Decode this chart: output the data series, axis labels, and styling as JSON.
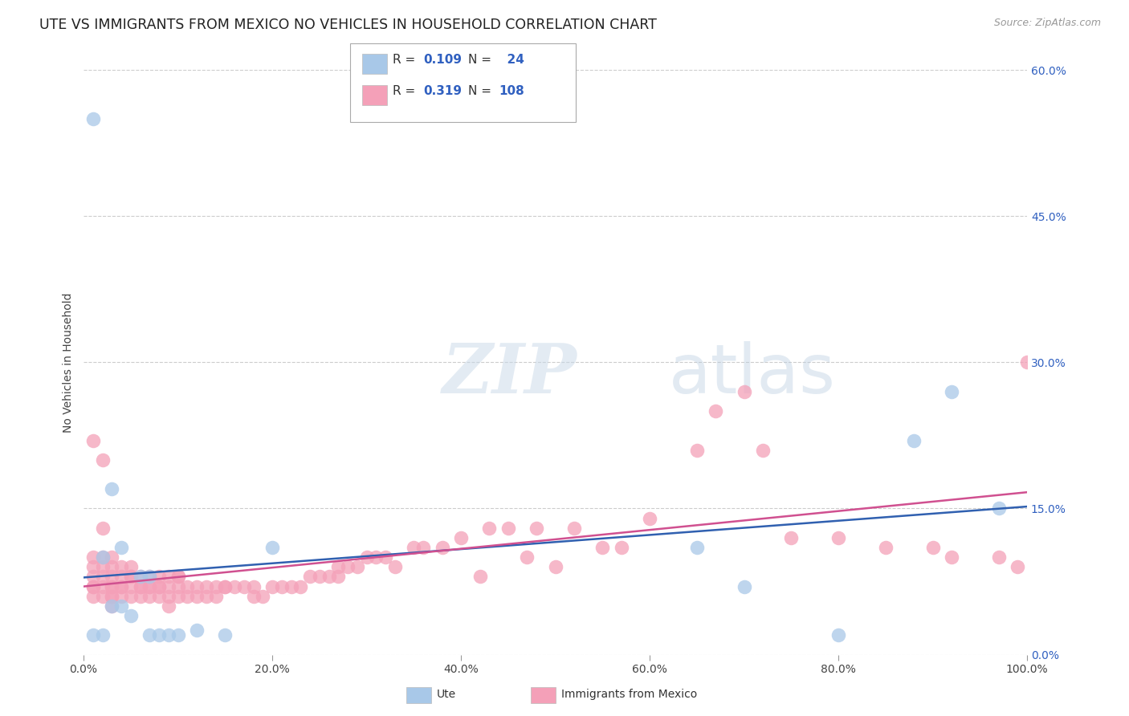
{
  "title": "UTE VS IMMIGRANTS FROM MEXICO NO VEHICLES IN HOUSEHOLD CORRELATION CHART",
  "source": "Source: ZipAtlas.com",
  "ylabel_label": "No Vehicles in Household",
  "legend_label1": "Ute",
  "legend_label2": "Immigrants from Mexico",
  "R1": 0.109,
  "N1": 24,
  "R2": 0.319,
  "N2": 108,
  "color_blue": "#a8c8e8",
  "color_blue_line": "#3060b0",
  "color_pink": "#f4a0b8",
  "color_pink_line": "#d05090",
  "color_right_tick": "#3060c0",
  "watermark_zip": "ZIP",
  "watermark_atlas": "atlas",
  "background_color": "#ffffff",
  "grid_color": "#cccccc",
  "title_fontsize": 12.5,
  "axis_label_fontsize": 10,
  "tick_fontsize": 10,
  "ute_x": [
    1,
    1,
    2,
    2,
    3,
    3,
    4,
    4,
    5,
    6,
    7,
    7,
    8,
    9,
    10,
    12,
    15,
    20,
    65,
    70,
    80,
    88,
    92,
    97
  ],
  "ute_y": [
    55,
    2,
    10,
    2,
    5,
    17,
    11,
    5,
    4,
    8,
    2,
    8,
    2,
    2,
    2,
    2.5,
    2,
    11,
    11,
    7,
    2,
    22,
    27,
    15
  ],
  "mex_x": [
    1,
    1,
    1,
    1,
    1,
    1,
    1,
    2,
    2,
    2,
    2,
    2,
    2,
    2,
    3,
    3,
    3,
    3,
    3,
    3,
    3,
    3,
    4,
    4,
    4,
    4,
    4,
    5,
    5,
    5,
    5,
    5,
    6,
    6,
    6,
    6,
    7,
    7,
    7,
    7,
    8,
    8,
    8,
    8,
    9,
    9,
    9,
    9,
    10,
    10,
    10,
    10,
    11,
    11,
    12,
    12,
    13,
    13,
    14,
    14,
    15,
    15,
    16,
    17,
    18,
    18,
    19,
    20,
    21,
    22,
    23,
    24,
    25,
    26,
    27,
    27,
    28,
    29,
    30,
    31,
    32,
    33,
    35,
    36,
    38,
    40,
    42,
    43,
    45,
    47,
    48,
    50,
    52,
    55,
    57,
    60,
    65,
    67,
    70,
    72,
    75,
    80,
    85,
    90,
    92,
    97,
    99,
    100
  ],
  "mex_y": [
    22,
    10,
    9,
    8,
    7,
    7,
    6,
    20,
    13,
    10,
    9,
    8,
    7,
    6,
    10,
    9,
    8,
    7,
    7,
    6,
    6,
    5,
    9,
    8,
    7,
    7,
    6,
    9,
    8,
    8,
    7,
    6,
    8,
    7,
    7,
    6,
    8,
    7,
    7,
    6,
    8,
    7,
    7,
    6,
    8,
    7,
    6,
    5,
    8,
    8,
    7,
    6,
    7,
    6,
    7,
    6,
    7,
    6,
    7,
    6,
    7,
    7,
    7,
    7,
    7,
    6,
    6,
    7,
    7,
    7,
    7,
    8,
    8,
    8,
    8,
    9,
    9,
    9,
    10,
    10,
    10,
    9,
    11,
    11,
    11,
    12,
    8,
    13,
    13,
    10,
    13,
    9,
    13,
    11,
    11,
    14,
    21,
    25,
    27,
    21,
    12,
    12,
    11,
    11,
    10,
    10,
    9,
    30
  ]
}
